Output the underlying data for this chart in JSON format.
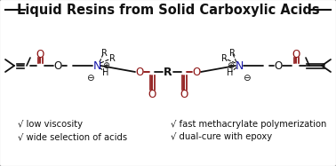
{
  "title": "Liquid Resins from Solid Carboxylic Acids",
  "title_fontsize": 10.5,
  "title_fontweight": "bold",
  "background_color": "#f0f0f0",
  "border_color": "#999999",
  "text_color_black": "#111111",
  "text_color_red": "#8b1010",
  "text_color_blue": "#1a1aaa",
  "bullet_items_left": [
    "√ low viscosity",
    "√ wide selection of acids"
  ],
  "bullet_items_right": [
    "√ fast methacrylate polymerization",
    "√ dual-cure with epoxy"
  ],
  "bullet_fontsize": 7.2,
  "fig_width": 3.78,
  "fig_height": 1.87,
  "dpi": 100
}
